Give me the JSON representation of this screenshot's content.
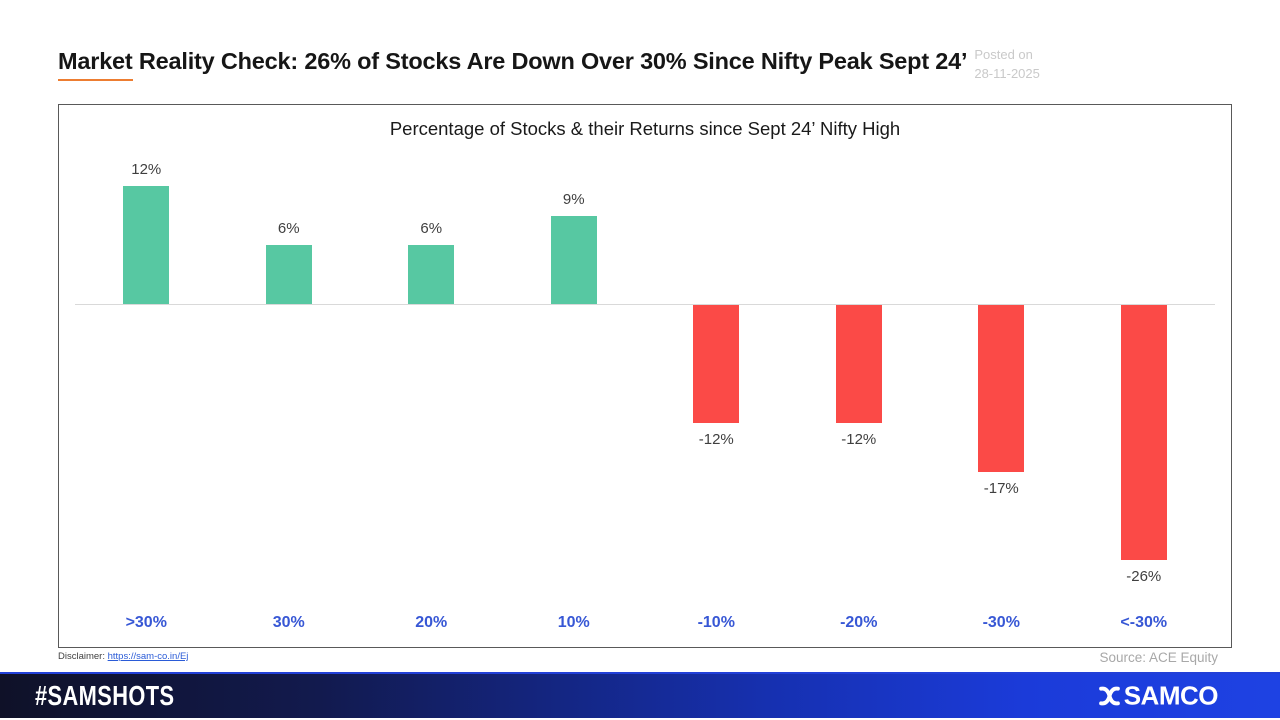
{
  "header": {
    "title_underlined": "Market",
    "title_rest": " Reality Check: 26% of Stocks Are Down Over 30% Since Nifty Peak Sept 24’",
    "posted_label": "Posted on",
    "posted_date": "28-11-2025"
  },
  "chart_data": {
    "type": "bar",
    "title": "Percentage of Stocks & their Returns since Sept 24’ Nifty High",
    "categories": [
      ">30%",
      "30%",
      "20%",
      "10%",
      "-10%",
      "-20%",
      "-30%",
      "<-30%"
    ],
    "values": [
      12,
      6,
      6,
      9,
      -12,
      -12,
      -17,
      -26
    ],
    "value_labels": [
      "12%",
      "6%",
      "6%",
      "9%",
      "-12%",
      "-12%",
      "-17%",
      "-26%"
    ],
    "ylim": [
      -30,
      15
    ],
    "grid": false,
    "legend": false,
    "colors": {
      "positive": "#57C8A2",
      "negative": "#FB4A47",
      "axis_labels": "#3757D5",
      "value_labels": "#3F3F3F",
      "zero_line": "#D9D9D9"
    }
  },
  "footnotes": {
    "disclaimer_label": "Disclaimer:",
    "disclaimer_link": "https://sam-co.in/Ej",
    "source": "Source: ACE Equity"
  },
  "footer": {
    "hashtag": "#SAMSHOTS",
    "brand": "SAMCO",
    "gradient_left": "#0F1128",
    "gradient_right": "#1E42E3"
  }
}
